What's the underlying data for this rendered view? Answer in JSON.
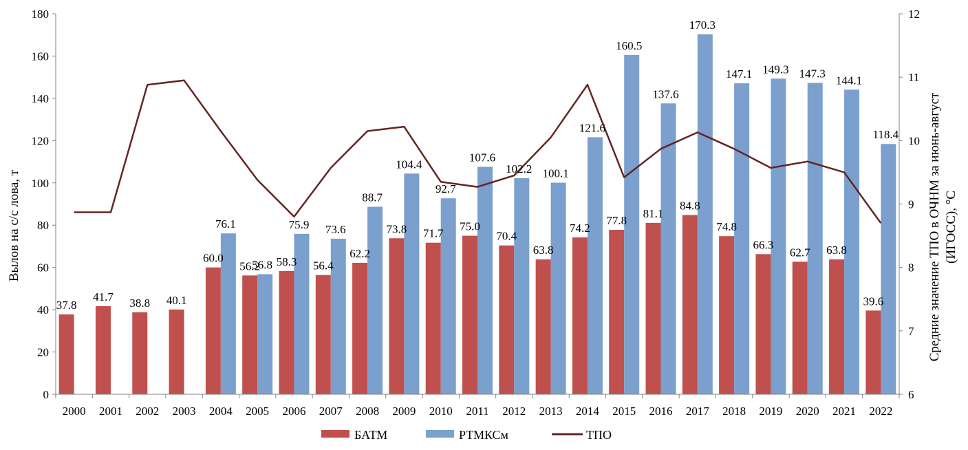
{
  "chart_data": {
    "type": "bar",
    "title": "",
    "categories": [
      "2000",
      "2001",
      "2002",
      "2003",
      "2004",
      "2005",
      "2006",
      "2007",
      "2008",
      "2009",
      "2010",
      "2011",
      "2012",
      "2013",
      "2014",
      "2015",
      "2016",
      "2017",
      "2018",
      "2019",
      "2020",
      "2021",
      "2022"
    ],
    "series": [
      {
        "name": "БАТМ",
        "type": "bar",
        "axis": "left",
        "color": "#C0504D",
        "values": [
          37.8,
          41.7,
          38.8,
          40.1,
          60.0,
          56.2,
          58.3,
          56.4,
          62.2,
          73.8,
          71.7,
          75.0,
          70.4,
          63.8,
          74.2,
          77.8,
          81.1,
          84.8,
          74.8,
          66.3,
          62.7,
          63.8,
          39.6
        ],
        "labels": [
          "37.8",
          "41.7",
          "38.8",
          "40.1",
          "60.0",
          "56.2",
          "58.3",
          "56.4",
          "62.2",
          "73.8",
          "71.7",
          "75.0",
          "70.4",
          "63.8",
          "74.2",
          "77.8",
          "81.1",
          "84.8",
          "74.8",
          "66.3",
          "62.7",
          "63.8",
          "39.6"
        ]
      },
      {
        "name": "РТМКСм",
        "type": "bar",
        "axis": "left",
        "color": "#7BA0CD",
        "values": [
          null,
          null,
          null,
          null,
          76.1,
          56.8,
          75.9,
          73.6,
          88.7,
          104.4,
          92.7,
          107.6,
          102.2,
          100.1,
          121.6,
          160.5,
          137.6,
          170.3,
          147.1,
          149.3,
          147.3,
          144.1,
          118.4
        ],
        "labels": [
          "",
          "",
          "",
          "",
          "76.1",
          "56.8",
          "75.9",
          "73.6",
          "88.7",
          "104.4",
          "92.7",
          "107.6",
          "102.2",
          "100.1",
          "121.6",
          "160.5",
          "137.6",
          "170.3",
          "147.1",
          "149.3",
          "147.3",
          "144.1",
          "118.4"
        ]
      },
      {
        "name": "ТПО",
        "type": "line",
        "axis": "right",
        "color": "#632523",
        "values": [
          8.87,
          8.87,
          10.88,
          10.95,
          10.15,
          9.38,
          8.8,
          9.57,
          10.15,
          10.22,
          9.35,
          9.27,
          9.45,
          10.05,
          10.88,
          9.42,
          9.87,
          10.13,
          9.87,
          9.57,
          9.67,
          9.5,
          8.7
        ]
      }
    ],
    "y_left": {
      "min": 0,
      "max": 180,
      "step": 20,
      "ticks": [
        "0",
        "20",
        "40",
        "60",
        "80",
        "100",
        "120",
        "140",
        "160",
        "180"
      ],
      "label": "Вылов на с/с лова, т"
    },
    "y_right": {
      "min": 6,
      "max": 12,
      "step": 1,
      "ticks": [
        "6",
        "7",
        "8",
        "9",
        "10",
        "11",
        "12"
      ],
      "label_line1": "Средние значение ТПО в ОЧНМ за июнь-август",
      "label_line2": "(ИГОСС), °С"
    },
    "grid": false,
    "legend": {
      "position": "bottom",
      "entries": [
        "БАТМ",
        "РТМКСм",
        "ТПО"
      ]
    }
  }
}
